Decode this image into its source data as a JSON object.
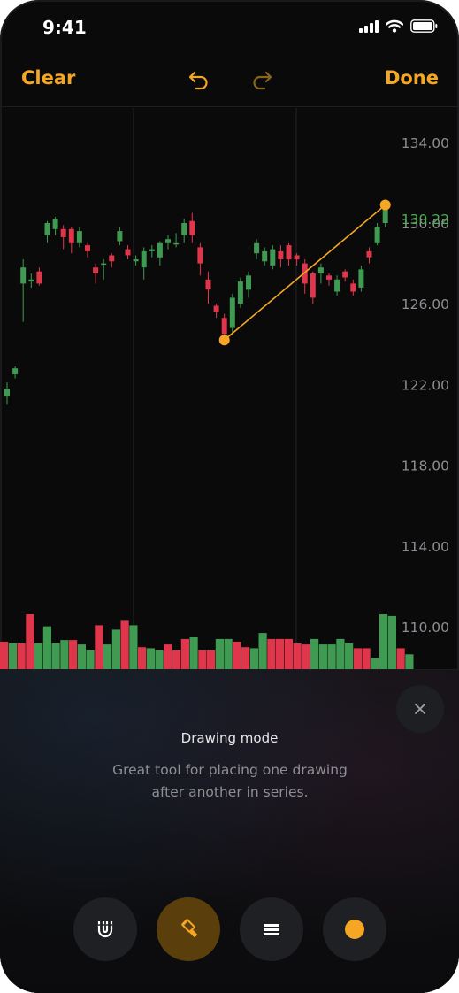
{
  "status_bar": {
    "time": "9:41"
  },
  "navbar": {
    "clear_label": "Clear",
    "done_label": "Done"
  },
  "colors": {
    "accent": "#f5a623",
    "up": "#3f9a52",
    "down": "#e0364c",
    "axis_text": "#8e8e93",
    "last_price": "#4caf50"
  },
  "chart": {
    "y_ticks": [
      "134.00",
      "130.00",
      "126.00",
      "122.00",
      "118.00",
      "114.00",
      "110.00"
    ],
    "last_price_label": "130.22"
  },
  "chart_data": {
    "type": "candlestick",
    "ylim": [
      108.5,
      134.6
    ],
    "y_ticks": [
      134,
      130,
      126,
      122,
      118,
      114,
      110
    ],
    "last_price": 130.22,
    "candles": [
      [
        121.4,
        121.8,
        121.0,
        122.1
      ],
      [
        122.5,
        122.8,
        122.3,
        122.9
      ],
      [
        127.0,
        127.8,
        125.1,
        128.2
      ],
      [
        127.1,
        127.2,
        126.8,
        127.5
      ],
      [
        127.6,
        127.0,
        126.9,
        127.8
      ],
      [
        129.4,
        130.0,
        129.0,
        130.1
      ],
      [
        129.7,
        130.2,
        129.4,
        130.3
      ],
      [
        129.7,
        129.3,
        128.7,
        129.9
      ],
      [
        129.7,
        129.0,
        128.5,
        129.8
      ],
      [
        129.0,
        129.6,
        128.8,
        129.8
      ],
      [
        128.9,
        128.6,
        128.3,
        129.0
      ],
      [
        127.8,
        127.5,
        127.0,
        128.0
      ],
      [
        128.0,
        128.0,
        127.2,
        128.2
      ],
      [
        128.4,
        128.1,
        127.8,
        128.5
      ],
      [
        129.1,
        129.6,
        128.9,
        129.8
      ],
      [
        128.7,
        128.4,
        128.2,
        128.9
      ],
      [
        128.1,
        128.2,
        127.9,
        128.4
      ],
      [
        127.8,
        128.6,
        127.2,
        128.8
      ],
      [
        128.6,
        128.7,
        128.3,
        128.9
      ],
      [
        128.3,
        129.0,
        127.9,
        129.1
      ],
      [
        129.0,
        129.2,
        128.7,
        129.4
      ],
      [
        129.0,
        129.0,
        128.8,
        129.5
      ],
      [
        129.4,
        130.0,
        129.0,
        130.2
      ],
      [
        130.1,
        129.4,
        129.0,
        130.5
      ],
      [
        128.8,
        128.0,
        127.4,
        129.0
      ],
      [
        127.2,
        126.7,
        126.0,
        127.6
      ],
      [
        125.9,
        125.6,
        125.3,
        126.0
      ],
      [
        125.3,
        124.5,
        124.0,
        125.5
      ],
      [
        124.8,
        126.3,
        124.5,
        126.5
      ],
      [
        126.0,
        127.1,
        125.8,
        127.3
      ],
      [
        126.7,
        127.4,
        126.3,
        127.6
      ],
      [
        128.5,
        129.0,
        128.2,
        129.2
      ],
      [
        128.1,
        128.6,
        127.9,
        128.8
      ],
      [
        127.9,
        128.7,
        127.7,
        128.9
      ],
      [
        128.6,
        128.2,
        127.8,
        128.9
      ],
      [
        128.9,
        128.2,
        127.9,
        129.0
      ],
      [
        128.4,
        128.2,
        127.9,
        128.5
      ],
      [
        128.0,
        127.0,
        126.5,
        128.2
      ],
      [
        127.5,
        126.3,
        126.0,
        127.6
      ],
      [
        127.5,
        127.8,
        127.0,
        128.0
      ],
      [
        127.4,
        127.2,
        126.9,
        127.5
      ],
      [
        126.6,
        127.2,
        126.4,
        127.4
      ],
      [
        127.6,
        127.3,
        127.1,
        127.7
      ],
      [
        127.0,
        126.6,
        126.4,
        127.2
      ],
      [
        126.8,
        127.7,
        126.6,
        127.9
      ],
      [
        128.6,
        128.3,
        128.0,
        128.8
      ],
      [
        129.0,
        129.8,
        128.9,
        130.0
      ],
      [
        130.0,
        130.9,
        129.8,
        131.0
      ]
    ],
    "volume": [
      [
        0.5,
        "down"
      ],
      [
        0.47,
        "up"
      ],
      [
        0.47,
        "down"
      ],
      [
        1.0,
        "down"
      ],
      [
        0.47,
        "up"
      ],
      [
        0.78,
        "up"
      ],
      [
        0.47,
        "up"
      ],
      [
        0.53,
        "up"
      ],
      [
        0.53,
        "down"
      ],
      [
        0.45,
        "up"
      ],
      [
        0.34,
        "up"
      ],
      [
        0.8,
        "down"
      ],
      [
        0.45,
        "up"
      ],
      [
        0.72,
        "up"
      ],
      [
        0.88,
        "down"
      ],
      [
        0.8,
        "up"
      ],
      [
        0.4,
        "down"
      ],
      [
        0.38,
        "up"
      ],
      [
        0.34,
        "up"
      ],
      [
        0.45,
        "down"
      ],
      [
        0.34,
        "down"
      ],
      [
        0.55,
        "down"
      ],
      [
        0.58,
        "up"
      ],
      [
        0.34,
        "down"
      ],
      [
        0.34,
        "down"
      ],
      [
        0.55,
        "up"
      ],
      [
        0.55,
        "up"
      ],
      [
        0.5,
        "down"
      ],
      [
        0.4,
        "down"
      ],
      [
        0.38,
        "up"
      ],
      [
        0.66,
        "up"
      ],
      [
        0.55,
        "down"
      ],
      [
        0.55,
        "down"
      ],
      [
        0.55,
        "down"
      ],
      [
        0.47,
        "down"
      ],
      [
        0.45,
        "down"
      ],
      [
        0.55,
        "up"
      ],
      [
        0.45,
        "up"
      ],
      [
        0.45,
        "up"
      ],
      [
        0.55,
        "up"
      ],
      [
        0.47,
        "up"
      ],
      [
        0.38,
        "down"
      ],
      [
        0.38,
        "down"
      ],
      [
        0.2,
        "up"
      ],
      [
        1.0,
        "up"
      ],
      [
        0.97,
        "up"
      ],
      [
        0.38,
        "down"
      ],
      [
        0.27,
        "up"
      ]
    ],
    "drawing": {
      "type": "trend-line",
      "start_price": 124.2,
      "end_price": 130.9,
      "start_candle": 27,
      "end_candle": 47
    }
  },
  "sheet": {
    "title": "Drawing mode",
    "description": "Great tool for placing one drawing after another in series."
  },
  "tools": [
    {
      "name": "magnet-button",
      "icon": "magnet-icon",
      "active": false
    },
    {
      "name": "drawing-mode-button",
      "icon": "paintbrush-icon",
      "active": true
    },
    {
      "name": "line-style-button",
      "icon": "lines-icon",
      "active": false
    },
    {
      "name": "color-button",
      "icon": "color-dot-icon",
      "active": false
    }
  ]
}
